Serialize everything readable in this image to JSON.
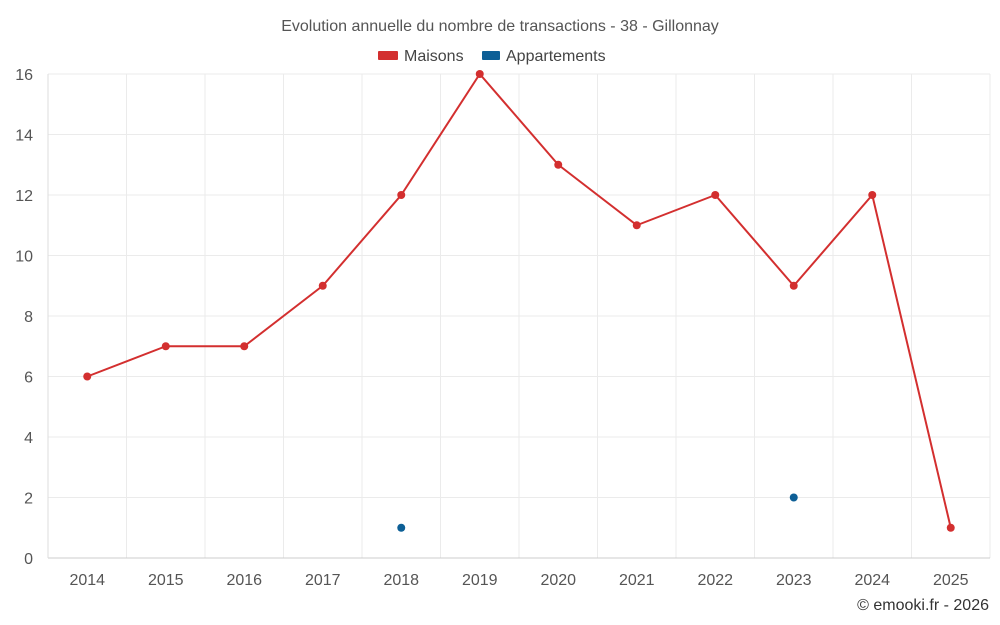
{
  "chart_data": {
    "type": "line",
    "title": "Evolution annuelle du nombre de transactions - 38 - Gillonnay",
    "categories": [
      "2014",
      "2015",
      "2016",
      "2017",
      "2018",
      "2019",
      "2020",
      "2021",
      "2022",
      "2023",
      "2024",
      "2025"
    ],
    "series": [
      {
        "name": "Maisons",
        "color": "#d32f2f",
        "values": [
          6,
          7,
          7,
          9,
          12,
          16,
          13,
          11,
          12,
          9,
          12,
          1
        ]
      },
      {
        "name": "Appartements",
        "color": "#0d5f96",
        "values": [
          null,
          null,
          null,
          null,
          1,
          null,
          null,
          null,
          null,
          2,
          null,
          null
        ]
      }
    ],
    "ylim": [
      0,
      16
    ],
    "yticks": [
      "0",
      "2",
      "4",
      "6",
      "8",
      "10",
      "12",
      "14",
      "16"
    ],
    "grid": true,
    "legend_position": "top-center"
  },
  "credit": "© emooki.fr - 2026"
}
